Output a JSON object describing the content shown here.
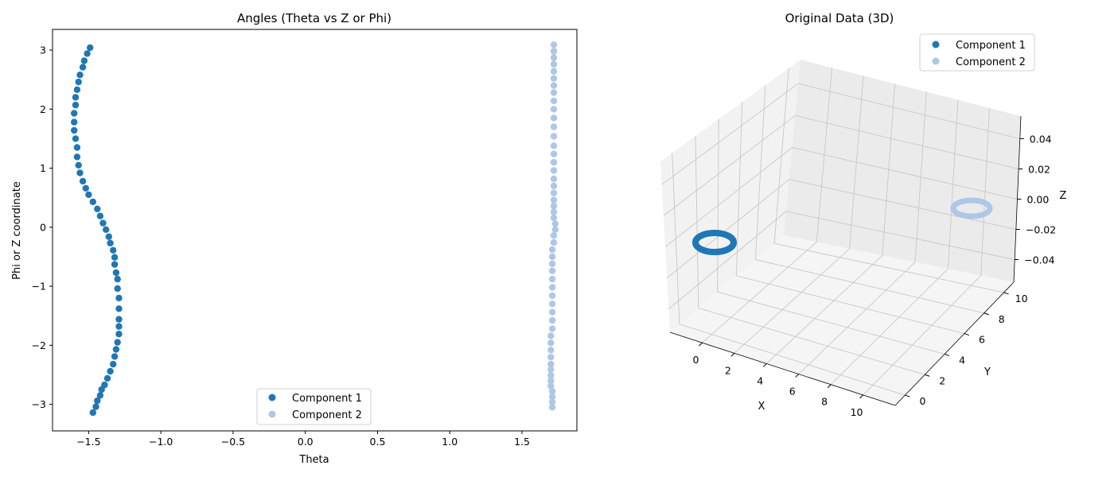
{
  "colors": {
    "component1": "#1f77b4",
    "component2": "#aec7e8"
  },
  "chart_data": [
    {
      "type": "scatter",
      "title": "Angles (Theta vs Z or Phi)",
      "xlabel": "Theta",
      "ylabel": "Phi or Z coordinate",
      "xlim": [
        -1.75,
        1.88
      ],
      "ylim": [
        -3.45,
        3.35
      ],
      "xticks": [
        -1.5,
        -1.0,
        -0.5,
        0.0,
        0.5,
        1.0,
        1.5
      ],
      "xtick_labels": [
        "−1.5",
        "−1.0",
        "−0.5",
        "0.0",
        "0.5",
        "1.0",
        "1.5"
      ],
      "yticks": [
        -3,
        -2,
        -1,
        0,
        1,
        2,
        3
      ],
      "ytick_labels": [
        "−3",
        "−2",
        "−1",
        "0",
        "1",
        "2",
        "3"
      ],
      "grid": false,
      "legend_position": "lower-center",
      "series": [
        {
          "name": "Component 1",
          "color": "#1f77b4",
          "points": [
            [
              -1.47,
              -3.14
            ],
            [
              -1.45,
              -3.04
            ],
            [
              -1.44,
              -2.94
            ],
            [
              -1.42,
              -2.85
            ],
            [
              -1.41,
              -2.75
            ],
            [
              -1.39,
              -2.67
            ],
            [
              -1.37,
              -2.56
            ],
            [
              -1.35,
              -2.44
            ],
            [
              -1.33,
              -2.32
            ],
            [
              -1.32,
              -2.19
            ],
            [
              -1.31,
              -2.07
            ],
            [
              -1.3,
              -1.95
            ],
            [
              -1.29,
              -1.81
            ],
            [
              -1.29,
              -1.68
            ],
            [
              -1.29,
              -1.56
            ],
            [
              -1.29,
              -1.38
            ],
            [
              -1.29,
              -1.2
            ],
            [
              -1.3,
              -1.04
            ],
            [
              -1.3,
              -0.88
            ],
            [
              -1.31,
              -0.77
            ],
            [
              -1.32,
              -0.63
            ],
            [
              -1.32,
              -0.51
            ],
            [
              -1.33,
              -0.39
            ],
            [
              -1.35,
              -0.27
            ],
            [
              -1.36,
              -0.16
            ],
            [
              -1.38,
              -0.04
            ],
            [
              -1.4,
              0.07
            ],
            [
              -1.42,
              0.19
            ],
            [
              -1.44,
              0.31
            ],
            [
              -1.47,
              0.43
            ],
            [
              -1.5,
              0.55
            ],
            [
              -1.52,
              0.66
            ],
            [
              -1.54,
              0.78
            ],
            [
              -1.56,
              0.92
            ],
            [
              -1.57,
              1.05
            ],
            [
              -1.58,
              1.19
            ],
            [
              -1.58,
              1.35
            ],
            [
              -1.59,
              1.5
            ],
            [
              -1.6,
              1.64
            ],
            [
              -1.6,
              1.78
            ],
            [
              -1.6,
              1.93
            ],
            [
              -1.59,
              2.07
            ],
            [
              -1.59,
              2.2
            ],
            [
              -1.58,
              2.33
            ],
            [
              -1.57,
              2.46
            ],
            [
              -1.56,
              2.58
            ],
            [
              -1.54,
              2.71
            ],
            [
              -1.53,
              2.82
            ],
            [
              -1.51,
              2.94
            ],
            [
              -1.49,
              3.04
            ]
          ]
        },
        {
          "name": "Component 2",
          "color": "#aec7e8",
          "points": [
            [
              1.71,
              -3.05
            ],
            [
              1.71,
              -2.96
            ],
            [
              1.71,
              -2.87
            ],
            [
              1.71,
              -2.78
            ],
            [
              1.7,
              -2.69
            ],
            [
              1.7,
              -2.6
            ],
            [
              1.7,
              -2.51
            ],
            [
              1.7,
              -2.41
            ],
            [
              1.7,
              -2.32
            ],
            [
              1.7,
              -2.2
            ],
            [
              1.7,
              -2.08
            ],
            [
              1.7,
              -1.96
            ],
            [
              1.7,
              -1.84
            ],
            [
              1.71,
              -1.72
            ],
            [
              1.71,
              -1.58
            ],
            [
              1.71,
              -1.44
            ],
            [
              1.71,
              -1.3
            ],
            [
              1.71,
              -1.16
            ],
            [
              1.71,
              -1.02
            ],
            [
              1.71,
              -0.88
            ],
            [
              1.71,
              -0.74
            ],
            [
              1.71,
              -0.62
            ],
            [
              1.71,
              -0.5
            ],
            [
              1.71,
              -0.38
            ],
            [
              1.72,
              -0.26
            ],
            [
              1.72,
              -0.14
            ],
            [
              1.73,
              -0.04
            ],
            [
              1.73,
              0.06
            ],
            [
              1.72,
              0.16
            ],
            [
              1.72,
              0.26
            ],
            [
              1.72,
              0.36
            ],
            [
              1.72,
              0.46
            ],
            [
              1.72,
              0.58
            ],
            [
              1.72,
              0.7
            ],
            [
              1.72,
              0.82
            ],
            [
              1.72,
              0.96
            ],
            [
              1.72,
              1.1
            ],
            [
              1.72,
              1.24
            ],
            [
              1.72,
              1.38
            ],
            [
              1.72,
              1.54
            ],
            [
              1.72,
              1.7
            ],
            [
              1.72,
              1.85
            ],
            [
              1.72,
              2.0
            ],
            [
              1.72,
              2.14
            ],
            [
              1.72,
              2.28
            ],
            [
              1.72,
              2.4
            ],
            [
              1.72,
              2.52
            ],
            [
              1.72,
              2.64
            ],
            [
              1.72,
              2.76
            ],
            [
              1.72,
              2.87
            ],
            [
              1.72,
              2.98
            ],
            [
              1.72,
              3.09
            ]
          ]
        }
      ]
    },
    {
      "type": "scatter",
      "projection": "3d",
      "title": "Original Data (3D)",
      "xlabel": "X",
      "ylabel": "Y",
      "zlabel": "Z",
      "xlim": [
        -2,
        12
      ],
      "ylim": [
        -1,
        11
      ],
      "zlim": [
        -0.055,
        0.055
      ],
      "xticks": [
        0,
        2,
        4,
        6,
        8,
        10
      ],
      "yticks": [
        0,
        2,
        4,
        6,
        8,
        10
      ],
      "zticks": [
        -0.04,
        -0.02,
        0.0,
        0.02,
        0.04
      ],
      "ztick_labels": [
        "−0.04",
        "−0.02",
        "0.00",
        "0.02",
        "0.04"
      ],
      "grid": true,
      "legend_position": "top-right",
      "series": [
        {
          "name": "Component 1",
          "color": "#1f77b4",
          "shape": "ring",
          "center": [
            0,
            2,
            0
          ],
          "radius": 1
        },
        {
          "name": "Component 2",
          "color": "#aec7e8",
          "shape": "ring",
          "center": [
            10,
            10,
            0
          ],
          "radius": 1
        }
      ]
    }
  ]
}
